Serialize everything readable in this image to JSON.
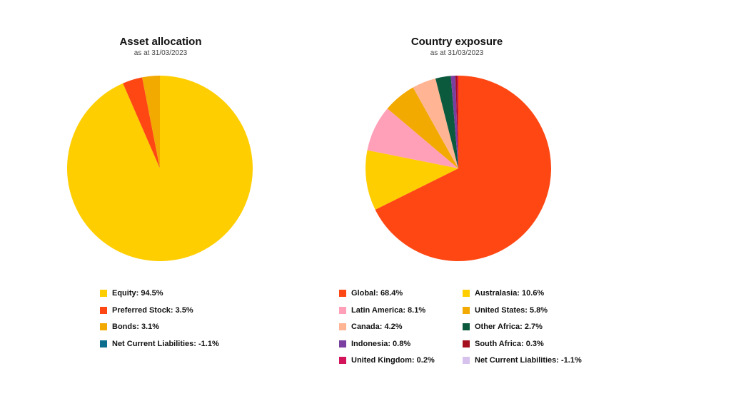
{
  "chart_data": [
    {
      "type": "pie",
      "title": "Asset allocation",
      "subtitle": "as at 31/03/2023",
      "slices": [
        {
          "label": "Equity",
          "value": 94.5,
          "display": "94.5%",
          "color": "#FFCE00"
        },
        {
          "label": "Preferred Stock",
          "value": 3.5,
          "display": "3.5%",
          "color": "#FF4713"
        },
        {
          "label": "Bonds",
          "value": 3.1,
          "display": "3.1%",
          "color": "#F2A900"
        },
        {
          "label": "Net Current Liabilities",
          "value": -1.1,
          "display": "-1.1%",
          "color": "#0A6E8C"
        }
      ]
    },
    {
      "type": "pie",
      "title": "Country exposure",
      "subtitle": "as at 31/03/2023",
      "slices": [
        {
          "label": "Global",
          "value": 68.4,
          "display": "68.4%",
          "color": "#FF4713"
        },
        {
          "label": "Australasia",
          "value": 10.6,
          "display": "10.6%",
          "color": "#FFCE00"
        },
        {
          "label": "Latin America",
          "value": 8.1,
          "display": "8.1%",
          "color": "#FF9FB8"
        },
        {
          "label": "United States",
          "value": 5.8,
          "display": "5.8%",
          "color": "#F2A900"
        },
        {
          "label": "Canada",
          "value": 4.2,
          "display": "4.2%",
          "color": "#FFB594"
        },
        {
          "label": "Other Africa",
          "value": 2.7,
          "display": "2.7%",
          "color": "#0B5A3E"
        },
        {
          "label": "Indonesia",
          "value": 0.8,
          "display": "0.8%",
          "color": "#7B3FA0"
        },
        {
          "label": "South Africa",
          "value": 0.3,
          "display": "0.3%",
          "color": "#A50F1E"
        },
        {
          "label": "United Kingdom",
          "value": 0.2,
          "display": "0.2%",
          "color": "#D4145A"
        },
        {
          "label": "Net Current Liabilities",
          "value": -1.1,
          "display": "-1.1%",
          "color": "#D6C2EC"
        }
      ]
    }
  ]
}
